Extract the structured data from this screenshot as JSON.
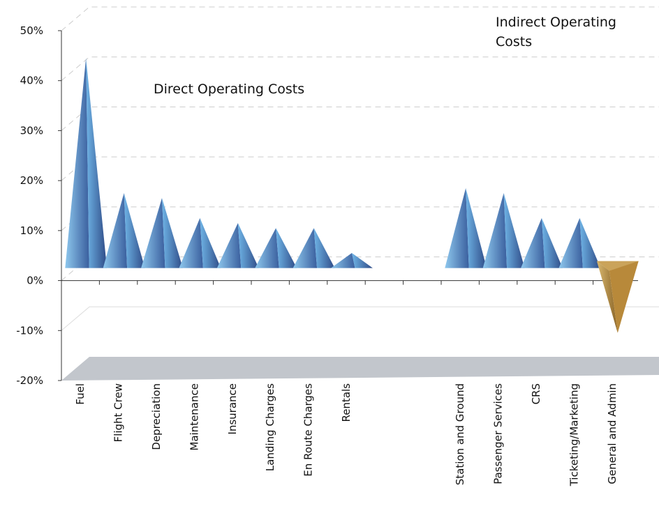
{
  "chart_data": {
    "type": "pyramid_bar",
    "categories": [
      "Fuel",
      "Flight Crew",
      "Depreciation",
      "Maintenance",
      "Insurance",
      "Landing Charges",
      "En Route Charges",
      "Rentals",
      null,
      null,
      "Station and Ground",
      "Passenger Services",
      "CRS",
      "Ticketing/Marketing",
      "General and Admin"
    ],
    "values": [
      42,
      15,
      14,
      10,
      9,
      8,
      8,
      3,
      null,
      null,
      16,
      15,
      10,
      10,
      -13
    ],
    "color": "#4a78b8",
    "negative_color": "#b8893a",
    "floor_color": "#c2c6cc",
    "ylim": [
      -20,
      50
    ],
    "yticks": [
      {
        "value": -20,
        "label": "-20%"
      },
      {
        "value": -10,
        "label": "-10%"
      },
      {
        "value": 0,
        "label": "0%"
      },
      {
        "value": 10,
        "label": "10%"
      },
      {
        "value": 20,
        "label": "20%"
      },
      {
        "value": 30,
        "label": "30%"
      },
      {
        "value": 40,
        "label": "40%"
      },
      {
        "value": 50,
        "label": "50%"
      }
    ],
    "grid": true,
    "annotations": [
      "Direct Operating Costs",
      "Indirect Operating Costs"
    ]
  }
}
